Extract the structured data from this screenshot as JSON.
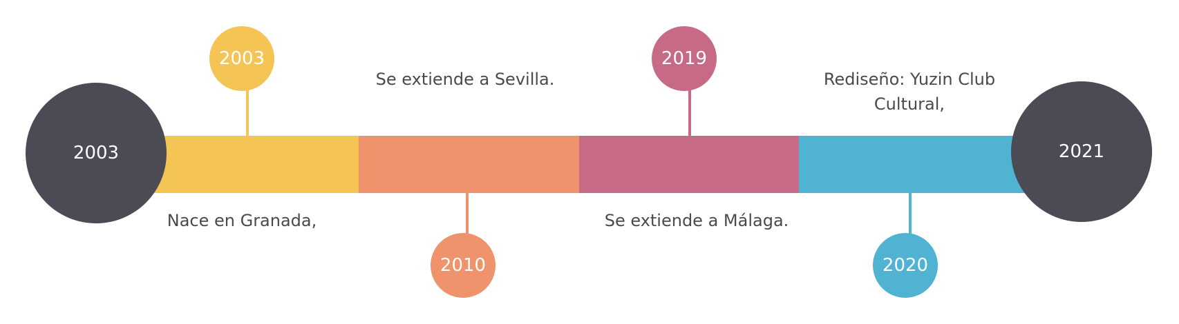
{
  "timeline": {
    "start_year": "2003",
    "end_year": "2021",
    "end_circle_color": "#4a4b55",
    "segments": [
      {
        "color": "#f4c555"
      },
      {
        "color": "#ee936b"
      },
      {
        "color": "#c66a86"
      },
      {
        "color": "#51b3d2"
      }
    ],
    "events": [
      {
        "year": "2003",
        "text": "Nace en Granada,",
        "color": "#f4c555",
        "marker_position": "above",
        "text_position": "below"
      },
      {
        "year": "2010",
        "text": "Se extiende a Sevilla.",
        "color": "#ee936b",
        "marker_position": "below",
        "text_position": "above"
      },
      {
        "year": "2019",
        "text": "Se extiende a Málaga.",
        "color": "#c66a86",
        "marker_position": "above",
        "text_position": "below"
      },
      {
        "year": "2020",
        "text_lines": [
          "Rediseño: Yuzin Club",
          "Cultural,"
        ],
        "color": "#51b3d2",
        "marker_position": "below",
        "text_position": "above"
      }
    ]
  }
}
